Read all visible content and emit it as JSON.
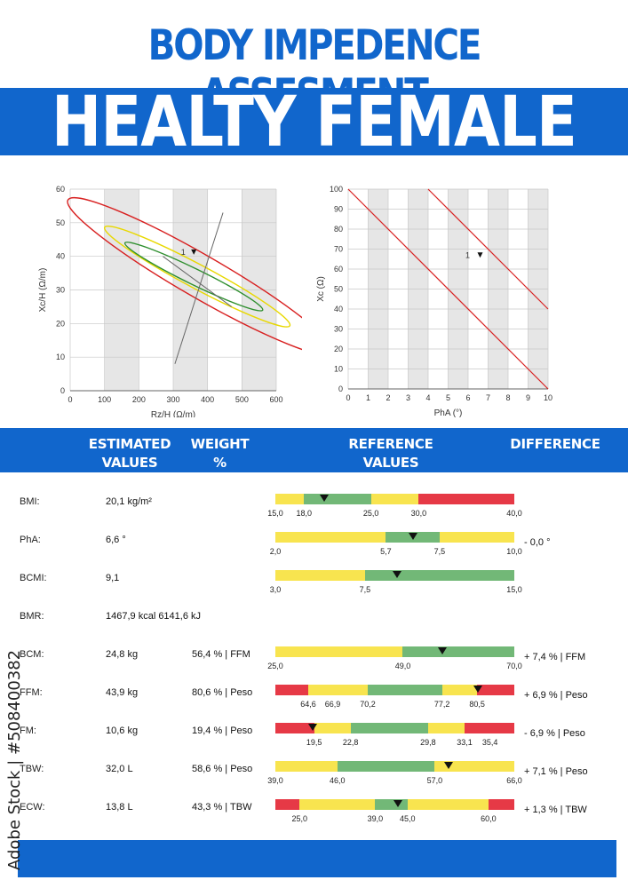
{
  "header": {
    "title": "BODY IMPEDENCE ASSESMENT",
    "subtitle": "HEALTY  FEMALE"
  },
  "colors": {
    "brand_blue": "#1166cc",
    "red": "#e63946",
    "yellow": "#f8e44f",
    "green": "#72b877"
  },
  "chart_data": [
    {
      "type": "scatter",
      "xlabel": "Rz/H (Ω/m)",
      "ylabel": "Xc/H (Ω/m)",
      "xlim": [
        0,
        600
      ],
      "ylim": [
        0,
        60
      ],
      "x_ticks": [
        "0",
        "100",
        "200",
        "300",
        "400",
        "500",
        "600"
      ],
      "y_ticks": [
        "0",
        "10",
        "20",
        "30",
        "40",
        "50",
        "60"
      ],
      "series": [
        {
          "points": [
            {
              "x": 360,
              "y": 41,
              "label": "1"
            }
          ]
        }
      ],
      "ellipses": [
        {
          "color": "red",
          "cx": 380,
          "cy": 34,
          "rx": 100,
          "ry": 19,
          "rotation_deg": 60
        },
        {
          "color": "yellow",
          "cx": 370,
          "cy": 34,
          "rx": 56,
          "ry": 13,
          "rotation_deg": 62
        },
        {
          "color": "green",
          "cx": 360,
          "cy": 34,
          "rx": 37,
          "ry": 9.5,
          "rotation_deg": 64
        }
      ],
      "grid": true
    },
    {
      "type": "scatter",
      "xlabel": "PhA (°)",
      "ylabel": "Xc (Ω)",
      "xlim": [
        0,
        10
      ],
      "ylim": [
        0,
        100
      ],
      "x_ticks": [
        "0",
        "1",
        "2",
        "3",
        "4",
        "5",
        "6",
        "7",
        "8",
        "9",
        "10"
      ],
      "y_ticks": [
        "0",
        "10",
        "20",
        "30",
        "40",
        "50",
        "60",
        "70",
        "80",
        "90",
        "100"
      ],
      "series": [
        {
          "points": [
            {
              "x": 6.6,
              "y": 67,
              "label": "1"
            }
          ]
        }
      ],
      "lines": [
        {
          "x": [
            0,
            10
          ],
          "y": [
            100,
            0
          ],
          "color": "red"
        },
        {
          "x": [
            4,
            10
          ],
          "y": [
            100,
            40
          ],
          "color": "red"
        }
      ],
      "grid": true
    }
  ],
  "table": {
    "headers": {
      "estimated": [
        "ESTIMATED",
        "VALUES"
      ],
      "weight": [
        "WEIGHT",
        "%"
      ],
      "reference": [
        "REFERENCE",
        "VALUES"
      ],
      "difference": "DIFFERENCE"
    },
    "rows": [
      {
        "label": "BMI:",
        "value": "20,1 kg/m²",
        "weight": "",
        "diff": "",
        "ref": {
          "min": 15,
          "max": 40,
          "marker": 20.1,
          "segments": [
            [
              "yellow",
              15,
              18
            ],
            [
              "green",
              18,
              25
            ],
            [
              "yellow",
              25,
              30
            ],
            [
              "red",
              30,
              40
            ]
          ],
          "ticks": [
            [
              "15,0",
              15
            ],
            [
              "18,0",
              18
            ],
            [
              "25,0",
              25
            ],
            [
              "30,0",
              30
            ],
            [
              "40,0",
              40
            ]
          ]
        }
      },
      {
        "label": "PhA:",
        "value": "6,6 °",
        "weight": "",
        "diff": "- 0,0 °",
        "ref": {
          "min": 2,
          "max": 10,
          "marker": 6.6,
          "segments": [
            [
              "yellow",
              2,
              5.7
            ],
            [
              "green",
              5.7,
              7.5
            ],
            [
              "yellow",
              7.5,
              10
            ]
          ],
          "ticks": [
            [
              "2,0",
              2
            ],
            [
              "5,7",
              5.7
            ],
            [
              "7,5",
              7.5
            ],
            [
              "10,0",
              10
            ]
          ]
        }
      },
      {
        "label": "BCMI:",
        "value": "9,1",
        "weight": "",
        "diff": "",
        "ref": {
          "min": 3,
          "max": 15,
          "marker": 9.1,
          "segments": [
            [
              "yellow",
              3,
              7.5
            ],
            [
              "green",
              7.5,
              15
            ]
          ],
          "ticks": [
            [
              "3,0",
              3
            ],
            [
              "7,5",
              7.5
            ],
            [
              "15,0",
              15
            ]
          ]
        }
      },
      {
        "label": "BMR:",
        "value": "1467,9 kcal 6141,6 kJ",
        "weight": "",
        "diff": "",
        "ref": null
      },
      {
        "label": "BCM:",
        "value": "24,8 kg",
        "weight": "56,4 % | FFM",
        "diff": "+ 7,4 % | FFM",
        "ref": {
          "min": 25,
          "max": 70,
          "marker": 56.4,
          "segments": [
            [
              "yellow",
              25,
              49
            ],
            [
              "green",
              49,
              70
            ]
          ],
          "ticks": [
            [
              "25,0",
              25
            ],
            [
              "49,0",
              49
            ],
            [
              "70,0",
              70
            ]
          ]
        }
      },
      {
        "label": "FFM:",
        "value": "43,9 kg",
        "weight": "80,6 % | Peso",
        "diff": "+ 6,9 % | Peso",
        "ref": {
          "min": 61.5,
          "max": 84,
          "marker": 80.6,
          "segments": [
            [
              "red",
              61.5,
              64.6
            ],
            [
              "yellow",
              64.6,
              70.2
            ],
            [
              "green",
              70.2,
              77.2
            ],
            [
              "yellow",
              77.2,
              80.5
            ],
            [
              "red",
              80.5,
              84
            ]
          ],
          "ticks": [
            [
              "64,6",
              64.6
            ],
            [
              "66,9",
              66.9
            ],
            [
              "70,2",
              70.2
            ],
            [
              "77,2",
              77.2
            ],
            [
              "80,5",
              80.5
            ]
          ]
        }
      },
      {
        "label": "FM:",
        "value": "10,6 kg",
        "weight": "19,4 % | Peso",
        "diff": "- 6,9 % | Peso",
        "ref": {
          "min": 16,
          "max": 37.6,
          "marker": 19.4,
          "segments": [
            [
              "red",
              16,
              19.5
            ],
            [
              "yellow",
              19.5,
              22.8
            ],
            [
              "green",
              22.8,
              29.8
            ],
            [
              "yellow",
              29.8,
              33.1
            ],
            [
              "red",
              33.1,
              37.6
            ]
          ],
          "ticks": [
            [
              "19,5",
              19.5
            ],
            [
              "22,8",
              22.8
            ],
            [
              "29,8",
              29.8
            ],
            [
              "33,1",
              33.1
            ],
            [
              "35,4",
              35.4
            ]
          ]
        }
      },
      {
        "label": "TBW:",
        "value": "32,0 L",
        "weight": "58,6 % | Peso",
        "diff": "+ 7,1 % | Peso",
        "ref": {
          "min": 39,
          "max": 66,
          "marker": 58.6,
          "segments": [
            [
              "yellow",
              39,
              46
            ],
            [
              "green",
              46,
              57
            ],
            [
              "yellow",
              57,
              66
            ]
          ],
          "ticks": [
            [
              "39,0",
              39
            ],
            [
              "46,0",
              46
            ],
            [
              "57,0",
              57
            ],
            [
              "66,0",
              66
            ]
          ]
        }
      },
      {
        "label": "ECW:",
        "value": "13,8 L",
        "weight": "43,3 % | TBW",
        "diff": "+ 1,3 % | TBW",
        "ref": {
          "min": 20.5,
          "max": 64.8,
          "marker": 43.3,
          "segments": [
            [
              "red",
              20.5,
              25
            ],
            [
              "yellow",
              25,
              39
            ],
            [
              "green",
              39,
              45
            ],
            [
              "yellow",
              45,
              60
            ],
            [
              "red",
              60,
              64.8
            ]
          ],
          "ticks": [
            [
              "25,0",
              25
            ],
            [
              "39,0",
              39
            ],
            [
              "45,0",
              45
            ],
            [
              "60,0",
              60
            ]
          ]
        }
      }
    ]
  },
  "watermark": "Adobe Stock | #508400382"
}
